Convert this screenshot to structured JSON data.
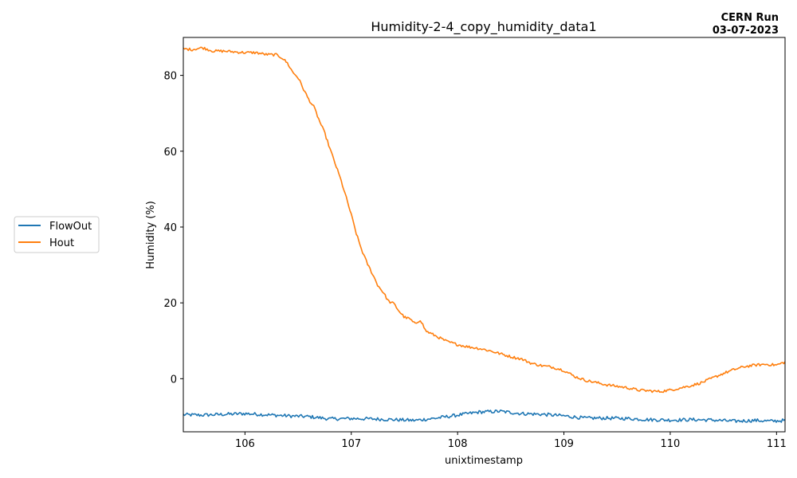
{
  "chart_data": {
    "type": "line",
    "title": "Humidity-2-4_copy_humidity_data1",
    "corner_label": {
      "line1": "CERN Run",
      "line2": "03-07-2023"
    },
    "xlabel": "unixtimestamp",
    "ylabel": "Humidity (%)",
    "xlim": [
      105.42,
      111.08
    ],
    "ylim": [
      -14.0,
      90.0
    ],
    "xticks": [
      106,
      107,
      108,
      109,
      110,
      111
    ],
    "yticks": [
      0,
      20,
      40,
      60,
      80
    ],
    "grid": false,
    "legend_position": "left",
    "series": [
      {
        "name": "FlowOut",
        "color": "#1f77b4",
        "points": [
          [
            105.42,
            -9.5
          ],
          [
            105.6,
            -9.6
          ],
          [
            105.8,
            -9.4
          ],
          [
            106.0,
            -9.2
          ],
          [
            106.2,
            -9.5
          ],
          [
            106.4,
            -9.8
          ],
          [
            106.6,
            -10.0
          ],
          [
            106.8,
            -10.6
          ],
          [
            107.0,
            -10.5
          ],
          [
            107.2,
            -10.6
          ],
          [
            107.4,
            -10.8
          ],
          [
            107.6,
            -11.0
          ],
          [
            107.8,
            -10.4
          ],
          [
            108.0,
            -9.6
          ],
          [
            108.2,
            -8.8
          ],
          [
            108.4,
            -8.6
          ],
          [
            108.6,
            -9.2
          ],
          [
            108.8,
            -9.4
          ],
          [
            109.0,
            -9.8
          ],
          [
            109.2,
            -10.4
          ],
          [
            109.4,
            -10.4
          ],
          [
            109.6,
            -10.5
          ],
          [
            109.8,
            -10.8
          ],
          [
            110.0,
            -10.9
          ],
          [
            110.2,
            -10.8
          ],
          [
            110.4,
            -10.9
          ],
          [
            110.6,
            -11.2
          ],
          [
            110.8,
            -11.0
          ],
          [
            110.95,
            -11.2
          ],
          [
            111.08,
            -11.0
          ]
        ]
      },
      {
        "name": "Hout",
        "color": "#ff7f0e",
        "points": [
          [
            105.42,
            87.0
          ],
          [
            105.5,
            86.8
          ],
          [
            105.6,
            87.3
          ],
          [
            105.7,
            86.4
          ],
          [
            105.8,
            86.4
          ],
          [
            105.9,
            86.2
          ],
          [
            106.0,
            86.0
          ],
          [
            106.1,
            86.0
          ],
          [
            106.2,
            85.5
          ],
          [
            106.3,
            85.4
          ],
          [
            106.35,
            84.6
          ],
          [
            106.4,
            83.2
          ],
          [
            106.45,
            80.8
          ],
          [
            106.5,
            79.4
          ],
          [
            106.55,
            76.4
          ],
          [
            106.6,
            73.6
          ],
          [
            106.65,
            71.6
          ],
          [
            106.7,
            68.0
          ],
          [
            106.75,
            64.8
          ],
          [
            106.8,
            60.6
          ],
          [
            106.85,
            56.6
          ],
          [
            106.9,
            52.6
          ],
          [
            106.95,
            48.0
          ],
          [
            107.0,
            43.2
          ],
          [
            107.05,
            38.0
          ],
          [
            107.1,
            33.8
          ],
          [
            107.15,
            30.4
          ],
          [
            107.2,
            27.6
          ],
          [
            107.25,
            24.6
          ],
          [
            107.3,
            22.8
          ],
          [
            107.35,
            20.4
          ],
          [
            107.4,
            19.8
          ],
          [
            107.45,
            17.8
          ],
          [
            107.5,
            16.2
          ],
          [
            107.55,
            15.8
          ],
          [
            107.6,
            14.4
          ],
          [
            107.65,
            15.6
          ],
          [
            107.7,
            12.6
          ],
          [
            107.8,
            11.2
          ],
          [
            107.9,
            9.8
          ],
          [
            108.0,
            9.0
          ],
          [
            108.1,
            8.4
          ],
          [
            108.2,
            8.0
          ],
          [
            108.3,
            7.4
          ],
          [
            108.4,
            6.6
          ],
          [
            108.5,
            5.8
          ],
          [
            108.6,
            5.2
          ],
          [
            108.7,
            4.0
          ],
          [
            108.8,
            3.4
          ],
          [
            108.9,
            3.0
          ],
          [
            109.0,
            2.2
          ],
          [
            109.1,
            0.6
          ],
          [
            109.2,
            -0.4
          ],
          [
            109.3,
            -1.0
          ],
          [
            109.4,
            -1.6
          ],
          [
            109.5,
            -2.0
          ],
          [
            109.6,
            -2.4
          ],
          [
            109.7,
            -3.0
          ],
          [
            109.8,
            -3.2
          ],
          [
            109.9,
            -3.4
          ],
          [
            110.0,
            -3.0
          ],
          [
            110.1,
            -2.4
          ],
          [
            110.2,
            -1.8
          ],
          [
            110.3,
            -1.0
          ],
          [
            110.4,
            0.2
          ],
          [
            110.5,
            1.4
          ],
          [
            110.6,
            2.4
          ],
          [
            110.7,
            3.2
          ],
          [
            110.8,
            3.6
          ],
          [
            110.9,
            3.8
          ],
          [
            111.0,
            3.6
          ],
          [
            111.08,
            4.4
          ]
        ]
      }
    ]
  }
}
